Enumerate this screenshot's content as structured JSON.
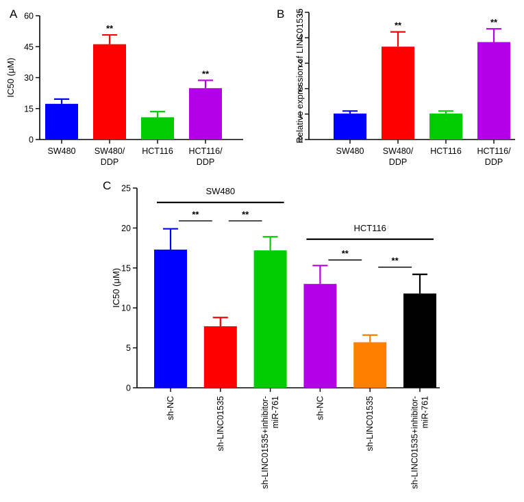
{
  "chart_data": [
    {
      "type": "bar",
      "panel": "A",
      "ylabel": "IC50 (μM)",
      "ylim": [
        0,
        60
      ],
      "yticks": [
        0,
        15,
        30,
        45,
        60
      ],
      "categories": [
        {
          "lines": [
            "SW480"
          ]
        },
        {
          "lines": [
            "SW480/",
            "DDP"
          ]
        },
        {
          "lines": [
            "HCT116"
          ]
        },
        {
          "lines": [
            "HCT116/",
            "DDP"
          ]
        }
      ],
      "values": [
        17.3,
        46.2,
        10.8,
        24.9
      ],
      "errors": [
        2.3,
        4.5,
        2.7,
        3.8
      ],
      "colors": [
        "#0000ff",
        "#ff0000",
        "#00cc00",
        "#b300e6"
      ],
      "significance": [
        "",
        "**",
        "",
        "**"
      ]
    },
    {
      "type": "bar",
      "panel": "B",
      "ylabel": "Relative expression of LINC01535",
      "ylim": [
        0,
        5
      ],
      "yticks": [
        0,
        1,
        2,
        3,
        4,
        5
      ],
      "categories": [
        {
          "lines": [
            "SW480"
          ]
        },
        {
          "lines": [
            "SW480/",
            "DDP"
          ]
        },
        {
          "lines": [
            "HCT116"
          ]
        },
        {
          "lines": [
            "HCT116/",
            "DDP"
          ]
        }
      ],
      "values": [
        1.02,
        3.65,
        1.02,
        3.83
      ],
      "errors": [
        0.1,
        0.58,
        0.1,
        0.52
      ],
      "colors": [
        "#0000ff",
        "#ff0000",
        "#00cc00",
        "#b300e6"
      ],
      "significance": [
        "",
        "**",
        "",
        "**"
      ]
    },
    {
      "type": "bar",
      "panel": "C",
      "ylabel": "IC50 (μM)",
      "ylim": [
        0,
        25
      ],
      "yticks": [
        0,
        5,
        10,
        15,
        20,
        25
      ],
      "categories": [
        {
          "lines": [
            "sh-NC"
          ]
        },
        {
          "lines": [
            "sh-LINC01535"
          ]
        },
        {
          "lines": [
            "sh-LINC01535+inhibitor-",
            "miR-761"
          ]
        },
        {
          "lines": [
            "sh-NC"
          ]
        },
        {
          "lines": [
            "sh-LINC01535"
          ]
        },
        {
          "lines": [
            "sh-LINC01535+inhibitor-",
            "miR-761"
          ]
        }
      ],
      "values": [
        17.3,
        7.7,
        17.2,
        13.0,
        5.7,
        11.8
      ],
      "errors": [
        2.6,
        1.1,
        1.7,
        2.3,
        0.9,
        2.4
      ],
      "colors": [
        "#0000ff",
        "#ff0000",
        "#00cc00",
        "#b300e6",
        "#ff8000",
        "#000000"
      ],
      "groups": [
        {
          "label": "SW480",
          "from": 0,
          "to": 2,
          "line_y": 23.2
        },
        {
          "label": "HCT116",
          "from": 3,
          "to": 5,
          "line_y": 18.6
        }
      ],
      "comparisons": [
        {
          "from": 0,
          "to": 1,
          "y": 20.9,
          "label": "**"
        },
        {
          "from": 1,
          "to": 2,
          "y": 20.9,
          "label": "**"
        },
        {
          "from": 3,
          "to": 4,
          "y": 16.0,
          "label": "**"
        },
        {
          "from": 4,
          "to": 5,
          "y": 15.1,
          "label": "**"
        }
      ]
    }
  ]
}
